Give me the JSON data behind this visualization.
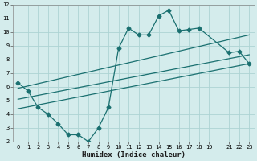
{
  "xlabel": "Humidex (Indice chaleur)",
  "xlim": [
    -0.5,
    23.5
  ],
  "ylim": [
    2,
    12
  ],
  "xticks": [
    0,
    1,
    2,
    3,
    4,
    5,
    6,
    7,
    8,
    9,
    10,
    11,
    12,
    13,
    14,
    15,
    16,
    17,
    18,
    19,
    21,
    22,
    23
  ],
  "yticks": [
    2,
    3,
    4,
    5,
    6,
    7,
    8,
    9,
    10,
    11,
    12
  ],
  "background_color": "#d4ecec",
  "grid_color": "#add4d4",
  "line_color": "#1a7070",
  "line1_x": [
    0,
    1,
    2,
    3,
    4,
    5,
    6,
    7,
    8,
    9,
    10,
    11,
    12,
    13,
    14,
    15,
    16,
    17,
    18,
    21,
    22,
    23
  ],
  "line1_y": [
    6.3,
    5.7,
    4.5,
    4.0,
    3.3,
    2.5,
    2.5,
    2.0,
    3.0,
    4.5,
    8.8,
    10.3,
    9.8,
    9.8,
    11.2,
    11.6,
    10.1,
    10.2,
    10.3,
    8.5,
    8.6,
    7.7
  ],
  "line2_x": [
    0,
    23
  ],
  "line2_y": [
    5.9,
    9.8
  ],
  "line3_x": [
    0,
    23
  ],
  "line3_y": [
    5.1,
    8.35
  ],
  "line4_x": [
    0,
    23
  ],
  "line4_y": [
    4.4,
    7.7
  ],
  "marker": "D",
  "markersize": 2.5,
  "linewidth": 0.9,
  "tick_fontsize": 5,
  "xlabel_fontsize": 6.5
}
